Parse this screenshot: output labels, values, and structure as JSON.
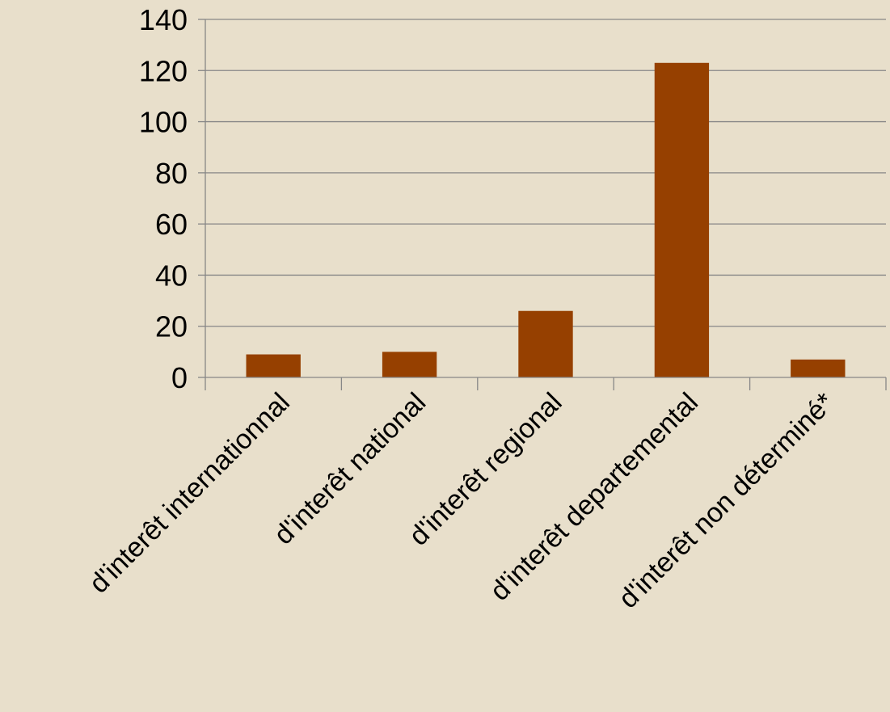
{
  "colors": {
    "background": "#e8dfcb",
    "bar": "#964000",
    "gridline": "#878787"
  },
  "chart_data": {
    "type": "bar",
    "title": "",
    "xlabel": "",
    "ylabel": "",
    "categories": [
      "d'interêt internationnal",
      "d'interêt national",
      "d'interêt regional",
      "d'interêt departemental",
      "d'interêt non déterminé*"
    ],
    "values": [
      9,
      10,
      26,
      123,
      7
    ],
    "ylim": [
      0,
      140
    ],
    "yticks": [
      "0",
      "20",
      "40",
      "60",
      "80",
      "100",
      "120",
      "140"
    ],
    "grid": true,
    "legend": "none"
  }
}
